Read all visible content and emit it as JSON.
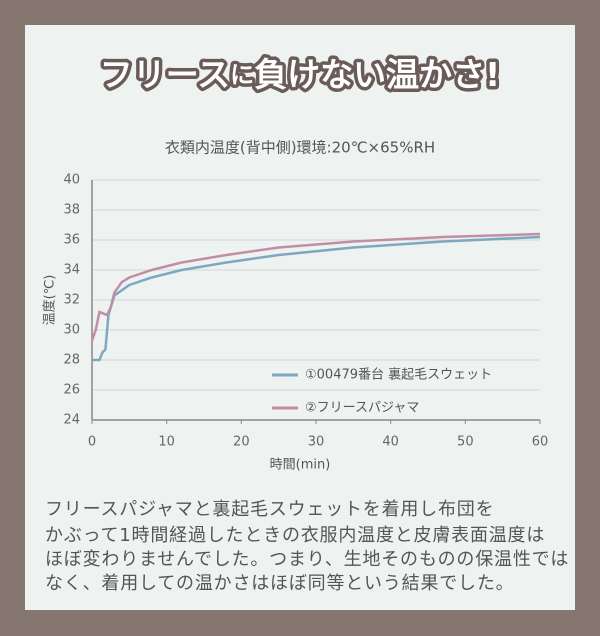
{
  "title_parts": [
    "フリース",
    "に",
    "負けない温かさ!"
  ],
  "chart_data": {
    "type": "line",
    "title": "衣類内温度(背中側)環境:20℃×65%RH",
    "x_label": "時間(min)",
    "y_label": "温度(℃)",
    "xlim": [
      0,
      60
    ],
    "xticks": [
      0,
      10,
      20,
      30,
      40,
      50,
      60
    ],
    "ylim": [
      24,
      40
    ],
    "yticks": [
      24,
      26,
      28,
      30,
      32,
      34,
      36,
      38,
      40
    ],
    "grid": true,
    "series": [
      {
        "name": "①00479番台 裏起毛スウェット",
        "color": "#7ea8c0",
        "x": [
          0,
          1,
          1.4,
          1.8,
          2.2,
          3,
          5,
          8,
          12,
          18,
          25,
          35,
          47,
          60
        ],
        "values": [
          28,
          28,
          28.5,
          28.7,
          31,
          32.3,
          33,
          33.5,
          34,
          34.5,
          35,
          35.5,
          35.9,
          36.2
        ]
      },
      {
        "name": "②フリースパジャマ",
        "color": "#c28ea6",
        "x": [
          0,
          0.5,
          1,
          2,
          2.5,
          3,
          4,
          5,
          8,
          12,
          18,
          25,
          35,
          47,
          60
        ],
        "values": [
          29.3,
          30,
          31.2,
          31,
          31.5,
          32.5,
          33.2,
          33.5,
          34,
          34.5,
          35,
          35.5,
          35.9,
          36.2,
          36.4
        ]
      }
    ]
  },
  "paragraph": [
    "フリースパジャマと裏起毛スウェットを着用し布団を",
    "かぶって1時間経過したときの衣服内温度と皮膚表面温度は",
    "ほぼ変わりませんでした。つまり、生地そのものの保温性では",
    "なく、着用しての温かさはほぼ同等という結果でした。"
  ]
}
